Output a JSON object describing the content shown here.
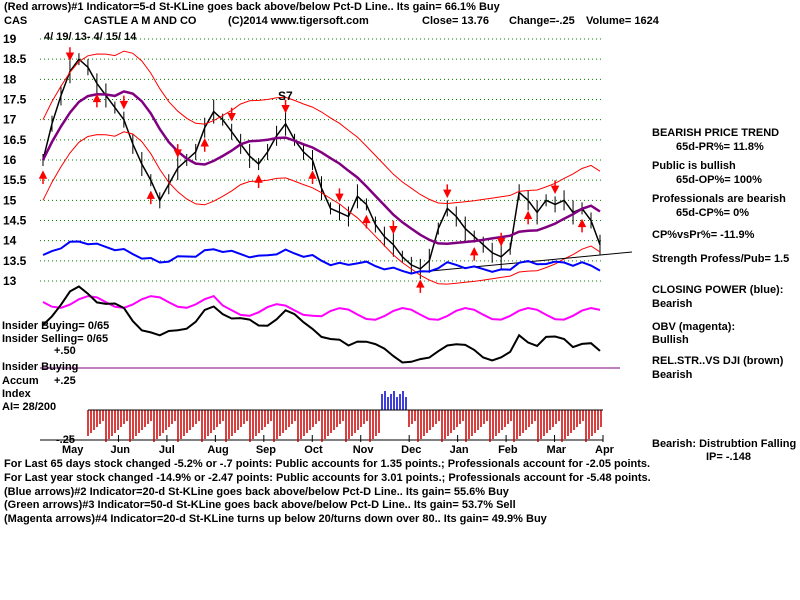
{
  "header": {
    "line1": "(Red arrows)#1 Indicator=5-d St-KLine goes back above/below Pct-D Line.. Its gain= 66.1% Buy",
    "symbol": "CAS",
    "company": "CASTLE A M AND CO",
    "copyright": "(C)2014 www.tigersoft.com",
    "close": "Close=  13.76",
    "change": "Change=-.25",
    "volume": "Volume= 1624",
    "date_range": "4/ 19/ 13-  4/ 15/ 14"
  },
  "chart_data": {
    "type": "line",
    "y_ticks": [
      "19",
      "18.5",
      "18",
      "17.5",
      "17",
      "16.5",
      "16",
      "15.5",
      "15",
      "14.5",
      "14",
      "13.5",
      "13"
    ],
    "ylim": [
      13,
      19
    ],
    "months": [
      "May",
      "Jun",
      "Jul",
      "Aug",
      "Sep",
      "Oct",
      "Nov",
      "Dec",
      "Jan",
      "Feb",
      "Mar",
      "Apr"
    ],
    "price_series": {
      "name": "Close",
      "values": [
        16.0,
        16.9,
        17.6,
        18.2,
        18.5,
        18.3,
        17.9,
        17.6,
        17.3,
        17.0,
        16.4,
        15.9,
        15.5,
        15.0,
        15.4,
        15.8,
        16.0,
        16.2,
        16.8,
        17.2,
        17.0,
        16.7,
        16.4,
        16.1,
        15.9,
        16.2,
        16.6,
        16.9,
        16.5,
        16.2,
        16.0,
        15.3,
        14.8,
        14.7,
        14.6,
        15.1,
        14.9,
        14.4,
        14.1,
        13.9,
        13.6,
        13.4,
        13.3,
        13.5,
        14.3,
        14.8,
        14.6,
        14.3,
        14.1,
        13.9,
        13.7,
        13.6,
        13.8,
        15.2,
        15.0,
        14.7,
        15.0,
        14.9,
        15.0,
        14.7,
        14.8,
        14.5,
        13.9
      ]
    },
    "ma_label": "S7",
    "indicator_labels": [
      "Insider Buying",
      "Accum",
      "Index",
      "AI= 28/200"
    ],
    "accum_ticks": [
      "+.50",
      "+.25",
      "-.25"
    ],
    "insider": [
      "Insider Buying= 0/65",
      "Insider Selling= 0/65"
    ]
  },
  "right_panel": {
    "trend_title": "BEARISH PRICE TREND",
    "pr": "65d-PR%= 11.8%",
    "public": "Public is bullish",
    "op": "65d-OP%= 100%",
    "professionals": "Professionals are bearish",
    "cp": "65d-CP%= 0%",
    "cpvspr": "CP%vsPr%= -11.9%",
    "strength": "Strength Profess/Pub= 1.5",
    "closing_power": "CLOSING POWER (blue):",
    "closing_power_val": "Bearish",
    "obv": "OBV (magenta):",
    "obv_val": "Bullish",
    "relstr": "REL.STR..VS DJI (brown)",
    "relstr_val": "Bearish",
    "distribution": "Bearish:  Distrubtion Falling",
    "ip": "IP= -.148"
  },
  "footer": {
    "line1": "For Last 65 days stock changed -5.2% or -.7 points:  Public accounts for  1.35 points.;  Professionals account for -2.05 points.",
    "line2": "For Last year stock changed -14.9% or -2.47 points:  Public accounts for  3.01 points.;  Professionals account for -5.48 points.",
    "line3": "(Blue arrows)#2 Indicator=20-d St-KLine goes back above/below Pct-D Line.. Its gain= 55.6% Buy",
    "line4": "(Green arrows)#3 Indicator=50-d St-KLine goes back above/below Pct-D Line.. Its gain= 53.7% Sell",
    "line5": "(Magenta arrows)#4 Indicator=20-d St-KLine turns up below 20/turns down over 80.. Its gain= 49.9% Buy"
  },
  "colors": {
    "price": "#000000",
    "band": "#ff0000",
    "ma": "#800080",
    "closing_power": "#0000ff",
    "obv": "#ff00ff",
    "relstr": "#000000",
    "grid": "#008000",
    "accum_red": "#cc0000",
    "accum_blue": "#0000cc"
  }
}
